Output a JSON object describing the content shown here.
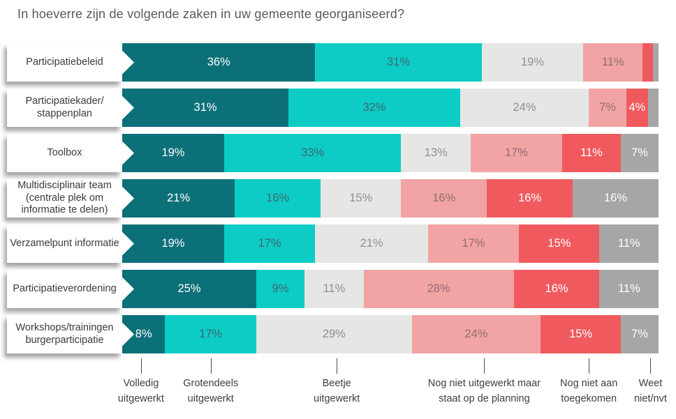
{
  "title": "In hoeverre zijn de volgende zaken in uw gemeente georganiseerd?",
  "colors": {
    "volledig": "#0c7079",
    "grotendeels": "#0cccc5",
    "beetje": "#e6e6e4",
    "planning": "#f2a3a4",
    "niet_aan_toegekomen": "#f05a5e",
    "weet_niet": "#a6a6a6",
    "title_text": "#585858",
    "label_text": "#3a3a3a"
  },
  "chart_data": {
    "type": "bar",
    "stacked": true,
    "orientation": "horizontal",
    "unit": "%",
    "xlim": [
      0,
      100
    ],
    "label_min_value": 4,
    "title": "In hoeverre zijn de volgende zaken in uw gemeente georganiseerd?",
    "categories": [
      {
        "label_lines": [
          "Participatiebeleid"
        ]
      },
      {
        "label_lines": [
          "Participatiekader/",
          "stappenplan"
        ]
      },
      {
        "label_lines": [
          "Toolbox"
        ]
      },
      {
        "label_lines": [
          "Multidisciplinair team",
          "(centrale plek om",
          "informatie te delen)"
        ]
      },
      {
        "label_lines": [
          "Verzamelpunt informatie"
        ]
      },
      {
        "label_lines": [
          "Participatieverordening"
        ]
      },
      {
        "label_lines": [
          "Workshops/trainingen",
          "burgerparticipatie"
        ]
      }
    ],
    "series": [
      {
        "name": "Volledig uitgewerkt",
        "color": "#0c7079",
        "text_color": "#ffffff",
        "values": [
          36,
          31,
          19,
          21,
          19,
          25,
          8
        ]
      },
      {
        "name": "Grotendeels uitgewerkt",
        "color": "#0cccc5",
        "text_color": "#3f686e",
        "values": [
          31,
          32,
          33,
          16,
          17,
          9,
          17
        ]
      },
      {
        "name": "Beetje uitgewerkt",
        "color": "#e6e6e4",
        "text_color": "#8f8f8f",
        "values": [
          19,
          24,
          13,
          15,
          21,
          11,
          29
        ]
      },
      {
        "name": "Nog niet uitgewerkt maar staat op de planning",
        "color": "#f2a3a4",
        "text_color": "#8f6f71",
        "values": [
          11,
          7,
          17,
          16,
          17,
          28,
          24
        ]
      },
      {
        "name": "Nog niet aan toegekomen",
        "color": "#f05a5e",
        "text_color": "#ffffff",
        "values": [
          2,
          4,
          11,
          16,
          15,
          16,
          15
        ]
      },
      {
        "name": "Weet niet/nvt",
        "color": "#a6a6a6",
        "text_color": "#ffffff",
        "values": [
          1,
          2,
          7,
          16,
          11,
          11,
          7
        ]
      }
    ],
    "legend": [
      {
        "lines": [
          "Volledig",
          "uitgewerkt"
        ],
        "anchor_pct": 3.5
      },
      {
        "lines": [
          "Grotendeels",
          "uitgewerkt"
        ],
        "anchor_pct": 16.5
      },
      {
        "lines": [
          "Beetje",
          "uitgewerkt"
        ],
        "anchor_pct": 40
      },
      {
        "lines": [
          "Nog niet uitgewerkt maar",
          "staat op de planning"
        ],
        "anchor_pct": 67.5
      },
      {
        "lines": [
          "Nog niet aan",
          "toegekomen"
        ],
        "anchor_pct": 87
      },
      {
        "lines": [
          "Weet",
          "niet/nvt"
        ],
        "anchor_pct": 98.5
      }
    ]
  }
}
